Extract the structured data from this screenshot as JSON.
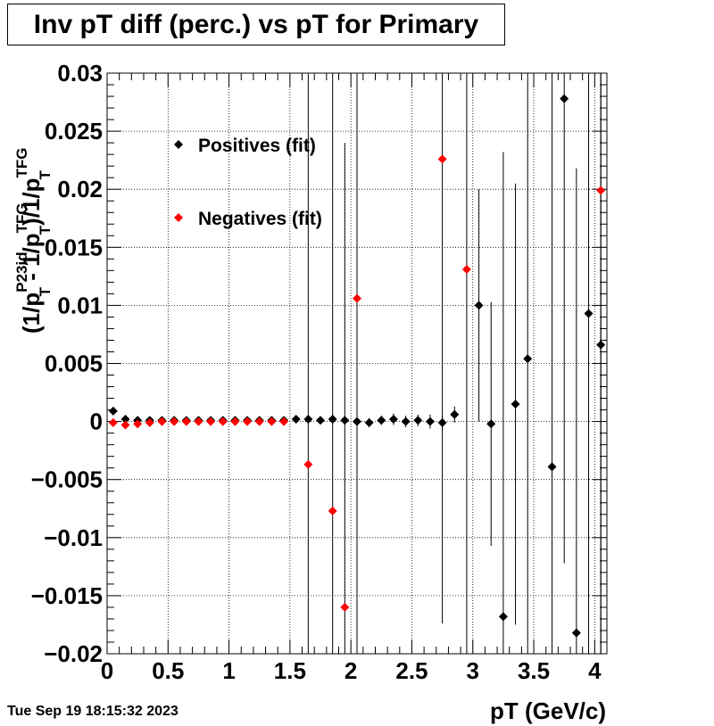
{
  "chart_data": {
    "type": "scatter",
    "title": "Inv pT diff (perc.) vs pT for Primary",
    "xlabel": "pT (GeV/c)",
    "ylabel": {
      "prefix": "(1/p",
      "sup1": "P23id",
      "sub1": "T",
      "mid": " - 1/p",
      "sup2": "TFG",
      "sub2": "T",
      "mid2": ")/1/p",
      "sup3": "TFG",
      "sub3": "T"
    },
    "xlim": [
      0,
      4.1
    ],
    "ylim": [
      -0.02,
      0.03
    ],
    "xticks": [
      {
        "v": 0,
        "label": "0"
      },
      {
        "v": 0.5,
        "label": "0.5"
      },
      {
        "v": 1,
        "label": "1"
      },
      {
        "v": 1.5,
        "label": "1.5"
      },
      {
        "v": 2,
        "label": "2"
      },
      {
        "v": 2.5,
        "label": "2.5"
      },
      {
        "v": 3,
        "label": "3"
      },
      {
        "v": 3.5,
        "label": "3.5"
      },
      {
        "v": 4,
        "label": "4"
      }
    ],
    "yticks": [
      {
        "v": -0.02,
        "label": "−0.02"
      },
      {
        "v": -0.015,
        "label": "−0.015"
      },
      {
        "v": -0.01,
        "label": "−0.01"
      },
      {
        "v": -0.005,
        "label": "−0.005"
      },
      {
        "v": 0,
        "label": "0"
      },
      {
        "v": 0.005,
        "label": "0.005"
      },
      {
        "v": 0.01,
        "label": "0.01"
      },
      {
        "v": 0.015,
        "label": "0.015"
      },
      {
        "v": 0.02,
        "label": "0.02"
      },
      {
        "v": 0.025,
        "label": "0.025"
      },
      {
        "v": 0.03,
        "label": "0.03"
      }
    ],
    "grid": true,
    "legend_position": "top-left",
    "series": [
      {
        "name": "Positives (fit)",
        "color": "#000000",
        "points": [
          {
            "x": 0.05,
            "y": 0.0009,
            "err": 0.0002
          },
          {
            "x": 0.15,
            "y": 0.0002,
            "err": 0.0002
          },
          {
            "x": 0.25,
            "y": 0.0001,
            "err": 0.0001
          },
          {
            "x": 0.35,
            "y": 0.0001,
            "err": 0.0001
          },
          {
            "x": 0.45,
            "y": 0.0001,
            "err": 0.0001
          },
          {
            "x": 0.55,
            "y": 0.0001,
            "err": 0.0001
          },
          {
            "x": 0.65,
            "y": 0.0001,
            "err": 0.0001
          },
          {
            "x": 0.75,
            "y": 0.0001,
            "err": 0.0001
          },
          {
            "x": 0.85,
            "y": 0.0001,
            "err": 0.0001
          },
          {
            "x": 0.95,
            "y": 0.0001,
            "err": 0.0001
          },
          {
            "x": 1.05,
            "y": 0.0001,
            "err": 0.0001
          },
          {
            "x": 1.15,
            "y": 0.0001,
            "err": 0.0001
          },
          {
            "x": 1.25,
            "y": 0.0001,
            "err": 0.0001
          },
          {
            "x": 1.35,
            "y": 0.0001,
            "err": 0.0001
          },
          {
            "x": 1.45,
            "y": 0.0001,
            "err": 0.0001
          },
          {
            "x": 1.55,
            "y": 0.0002,
            "err": 0.0002
          },
          {
            "x": 1.65,
            "y": 0.0002,
            "err": 0.0003
          },
          {
            "x": 1.75,
            "y": 0.0001,
            "err": 0.0003
          },
          {
            "x": 1.85,
            "y": 0.0002,
            "err": 0.0004
          },
          {
            "x": 1.95,
            "y": 0.0001,
            "err": 0.0004
          },
          {
            "x": 2.05,
            "y": 0.0,
            "err": 0.0004
          },
          {
            "x": 2.15,
            "y": -0.0001,
            "err": 0.0004
          },
          {
            "x": 2.25,
            "y": 0.0001,
            "err": 0.0004
          },
          {
            "x": 2.35,
            "y": 0.0002,
            "err": 0.0005
          },
          {
            "x": 2.45,
            "y": 0.0,
            "err": 0.0005
          },
          {
            "x": 2.55,
            "y": 0.0001,
            "err": 0.0005
          },
          {
            "x": 2.65,
            "y": 0.0,
            "err": 0.0006
          },
          {
            "x": 2.75,
            "y": -0.0001,
            "err": 0.0006
          },
          {
            "x": 2.85,
            "y": 0.0006,
            "err": 0.0007
          },
          {
            "x": 3.05,
            "y": 0.01,
            "err": 0.01
          },
          {
            "x": 3.15,
            "y": -0.0002,
            "err": 0.0105
          },
          {
            "x": 3.25,
            "y": -0.0168,
            "err": 0.04
          },
          {
            "x": 3.35,
            "y": 0.0015,
            "err": 0.019
          },
          {
            "x": 3.45,
            "y": 0.0054,
            "err": 0.04
          },
          {
            "x": 3.65,
            "y": -0.0039,
            "err": 0.04
          },
          {
            "x": 3.75,
            "y": 0.0278,
            "err": 0.04
          },
          {
            "x": 3.85,
            "y": -0.0182,
            "err": 0.04
          },
          {
            "x": 3.95,
            "y": 0.0093,
            "err": 0.04
          },
          {
            "x": 4.05,
            "y": 0.0066,
            "err": 0.04
          }
        ]
      },
      {
        "name": "Negatives (fit)",
        "color": "#ff0000",
        "points": [
          {
            "x": 0.05,
            "y": -0.0001,
            "err": 0.0002
          },
          {
            "x": 0.15,
            "y": -0.0003,
            "err": 0.0002
          },
          {
            "x": 0.25,
            "y": -0.0002,
            "err": 0.0001
          },
          {
            "x": 0.35,
            "y": -0.0001,
            "err": 0.0001
          },
          {
            "x": 0.45,
            "y": 0.0,
            "err": 0.0001
          },
          {
            "x": 0.55,
            "y": 0.0,
            "err": 0.0001
          },
          {
            "x": 0.65,
            "y": 0.0,
            "err": 0.0001
          },
          {
            "x": 0.75,
            "y": 0.0,
            "err": 0.0001
          },
          {
            "x": 0.85,
            "y": 0.0,
            "err": 0.0001
          },
          {
            "x": 0.95,
            "y": 0.0,
            "err": 0.0001
          },
          {
            "x": 1.05,
            "y": 0.0,
            "err": 0.0001
          },
          {
            "x": 1.15,
            "y": 0.0,
            "err": 0.0001
          },
          {
            "x": 1.25,
            "y": 0.0,
            "err": 0.0001
          },
          {
            "x": 1.35,
            "y": 0.0,
            "err": 0.0001
          },
          {
            "x": 1.45,
            "y": 0.0,
            "err": 0.0001
          },
          {
            "x": 1.65,
            "y": -0.0037,
            "err": 0.04
          },
          {
            "x": 1.85,
            "y": -0.0077,
            "err": 0.04
          },
          {
            "x": 1.95,
            "y": -0.016,
            "err": 0.04
          },
          {
            "x": 2.05,
            "y": 0.0106,
            "err": 0.04
          },
          {
            "x": 2.75,
            "y": 0.0226,
            "err": 0.04
          },
          {
            "x": 2.95,
            "y": 0.0131,
            "err": 0.04
          },
          {
            "x": 4.05,
            "y": 0.0199,
            "err": 0.04
          }
        ]
      }
    ]
  },
  "timestamp": "Tue Sep 19 18:15:32 2023"
}
